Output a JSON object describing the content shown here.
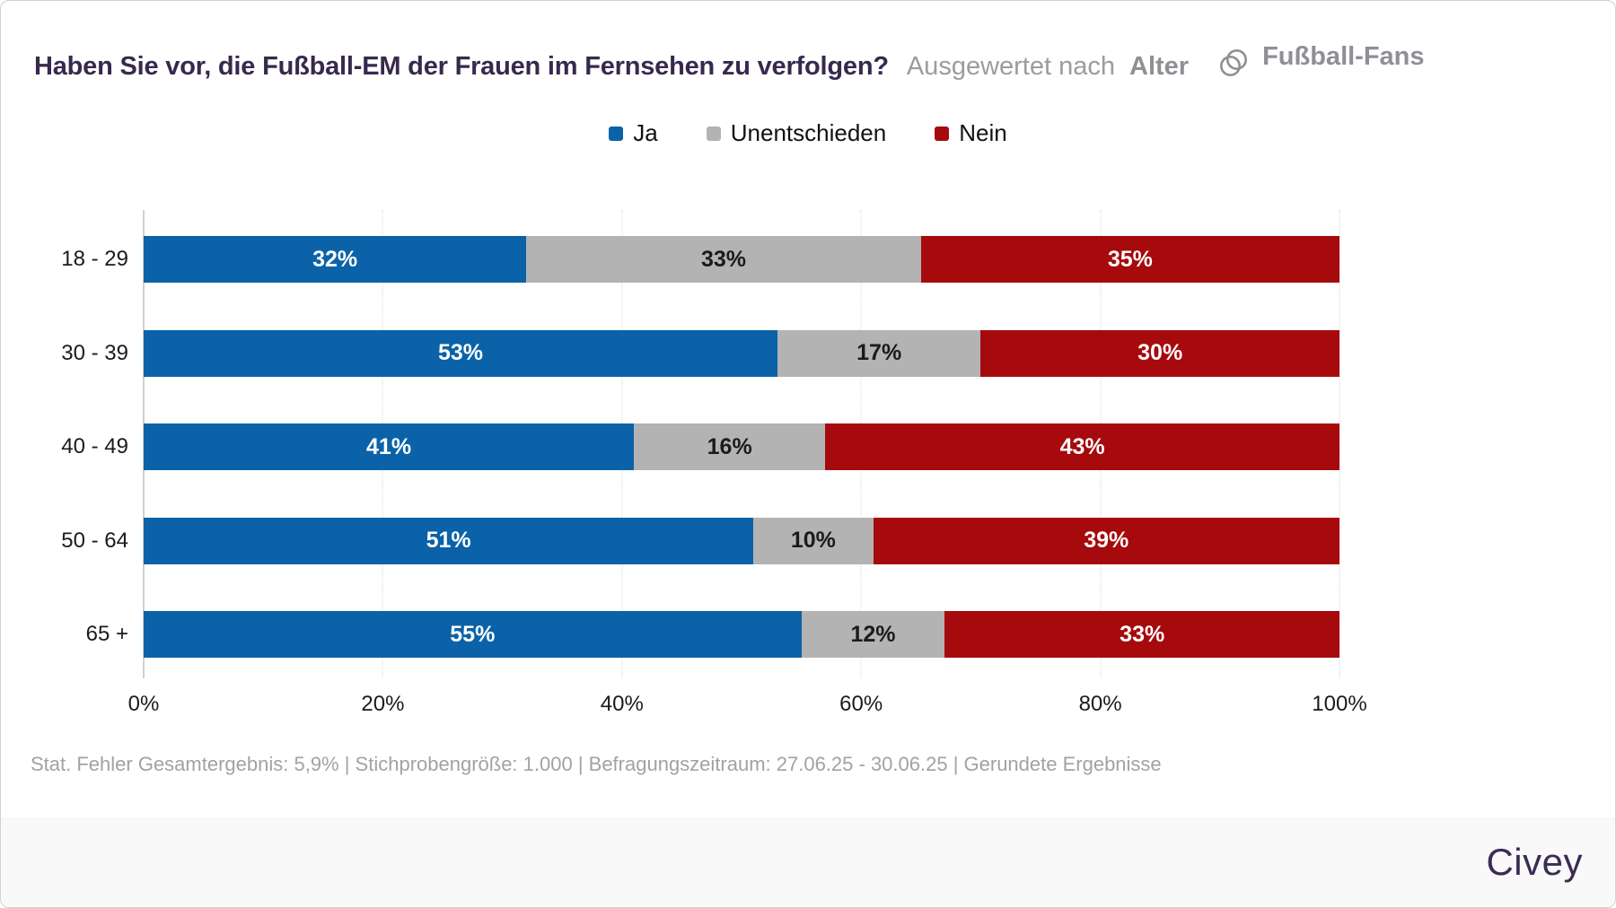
{
  "header": {
    "title": "Haben Sie vor, die Fußball-EM der Frauen im Fernsehen zu verfolgen?",
    "subtitle_prefix": "Ausgewertet nach",
    "subtitle_value": "Alter",
    "filter": {
      "icon": "overlapping-circles-filter-icon",
      "label": "Fußball-Fans",
      "icon_color": "#8f8f95"
    }
  },
  "chart_data": {
    "type": "bar",
    "stacked": true,
    "orientation": "horizontal",
    "categories": [
      "18 - 29",
      "30 - 39",
      "40 - 49",
      "50 - 64",
      "65 +"
    ],
    "series": [
      {
        "name": "Ja",
        "color": "#0b62a8",
        "label_color": "#ffffff",
        "values": [
          32,
          53,
          41,
          51,
          55
        ]
      },
      {
        "name": "Unentschieden",
        "color": "#b3b3b3",
        "label_color": "#1b1b1b",
        "values": [
          33,
          17,
          16,
          10,
          12
        ]
      },
      {
        "name": "Nein",
        "color": "#a60a0d",
        "label_color": "#ffffff",
        "values": [
          35,
          30,
          43,
          39,
          33
        ]
      }
    ],
    "value_suffix": "%",
    "x_ticks": [
      "0%",
      "20%",
      "40%",
      "60%",
      "80%",
      "100%"
    ],
    "xlim": [
      0,
      100
    ],
    "grid": "vertical-dotted",
    "legend_position": "top-center"
  },
  "footer": {
    "note": "Stat. Fehler Gesamtergebnis: 5,9% | Stichprobengröße: 1.000 | Befragungszeitraum: 27.06.25 - 30.06.25 | Gerundete Ergebnisse"
  },
  "branding": {
    "logo_text": "Civey"
  }
}
